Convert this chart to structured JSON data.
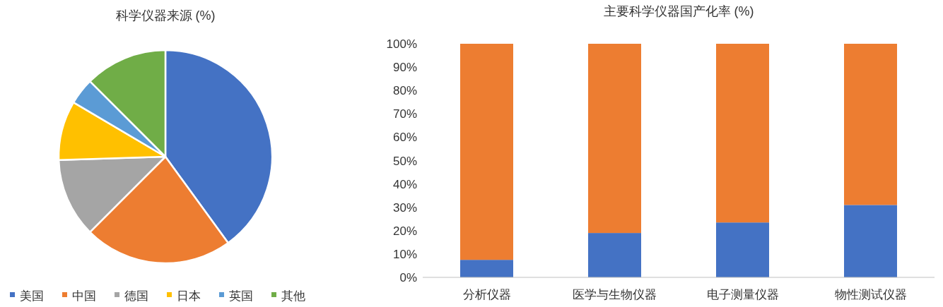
{
  "chart_data": [
    {
      "type": "pie",
      "title": "科学仪器来源 (%)",
      "categories": [
        "美国",
        "中国",
        "德国",
        "日本",
        "英国",
        "其他"
      ],
      "values": [
        40,
        22.5,
        12,
        9,
        4,
        12.5
      ],
      "colors": [
        "#4472c4",
        "#ed7d31",
        "#a5a5a5",
        "#ffc000",
        "#5b9bd5",
        "#70ad47"
      ],
      "legend": "bottom"
    },
    {
      "type": "bar",
      "title": "主要科学仪器国产化率 (%)",
      "categories": [
        "分析仪器",
        "医学与生物仪器",
        "电子测量仪器",
        "物性测试仪器"
      ],
      "stacked": true,
      "ylim": [
        0,
        100
      ],
      "yticks": [
        {
          "value": 0,
          "label": "0%"
        },
        {
          "value": 10,
          "label": "10%"
        },
        {
          "value": 20,
          "label": "20%"
        },
        {
          "value": 30,
          "label": "30%"
        },
        {
          "value": 40,
          "label": "40%"
        },
        {
          "value": 50,
          "label": "50%"
        },
        {
          "value": 60,
          "label": "60%"
        },
        {
          "value": 70,
          "label": "70%"
        },
        {
          "value": 80,
          "label": "80%"
        },
        {
          "value": 90,
          "label": "90%"
        },
        {
          "value": 100,
          "label": "100%"
        }
      ],
      "series": [
        {
          "color": "#4472c4",
          "values": [
            7.5,
            19,
            23.5,
            31
          ]
        },
        {
          "color": "#ed7d31",
          "values": [
            92.5,
            81,
            76.5,
            69
          ]
        }
      ]
    }
  ]
}
